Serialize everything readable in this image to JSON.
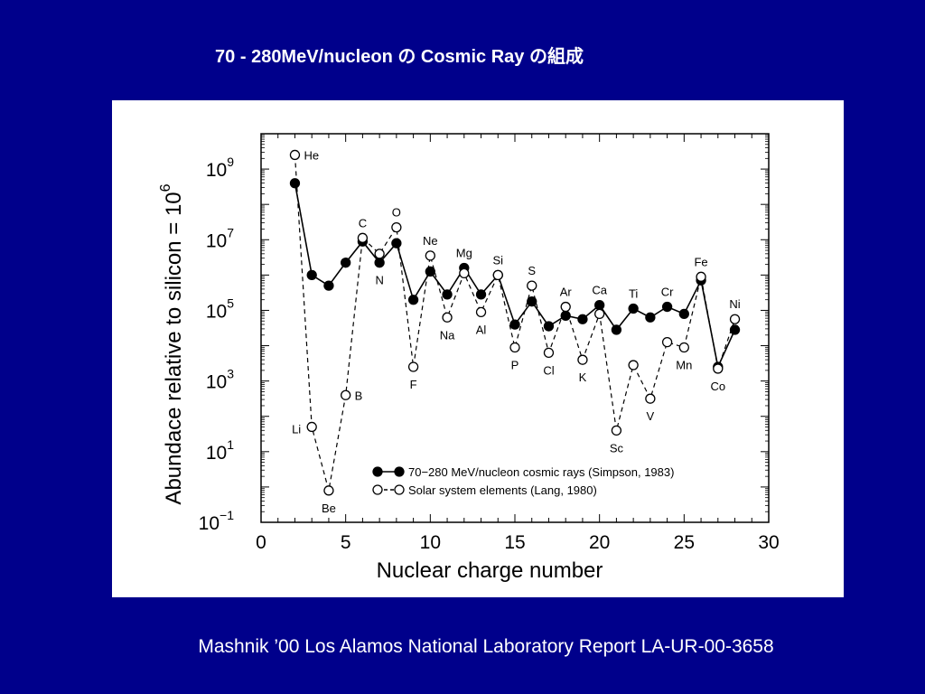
{
  "slide": {
    "title": "70 - 280MeV/nucleon の Cosmic Ray の組成",
    "caption": "Mashnik ’00 Los Alamos National Laboratory Report LA-UR-00-3658"
  },
  "colors": {
    "background": "#00008b",
    "panel": "#ffffff",
    "series_line": "#000000"
  },
  "chart_data": {
    "type": "line",
    "title": "",
    "xlabel": "Nuclear charge number",
    "ylabel_base": "Abundace relative to silicon = 10",
    "ylabel_exp": "6",
    "xlim": [
      0,
      30
    ],
    "ylim_log10": [
      -1,
      10
    ],
    "y_scale": "log",
    "grid": false,
    "legend_position": "bottom-right",
    "x_ticks": [
      0,
      5,
      10,
      15,
      20,
      25,
      30
    ],
    "y_tick_labels": [
      {
        "exp": 9,
        "base": "10",
        "sup": "9"
      },
      {
        "exp": 7,
        "base": "10",
        "sup": "7"
      },
      {
        "exp": 5,
        "base": "10",
        "sup": "5"
      },
      {
        "exp": 3,
        "base": "10",
        "sup": "3"
      },
      {
        "exp": 1,
        "base": "10",
        "sup": "1"
      },
      {
        "exp": -1,
        "base": "10",
        "sup": "−1"
      }
    ],
    "series": [
      {
        "name": "70−280 MeV/nucleon cosmic rays (Simpson, 1983)",
        "marker": "filled-circle",
        "line": "solid",
        "x": [
          2,
          3,
          4,
          5,
          6,
          7,
          8,
          9,
          10,
          11,
          12,
          13,
          14,
          15,
          16,
          17,
          18,
          19,
          20,
          21,
          22,
          23,
          24,
          25,
          26,
          27,
          28
        ],
        "log10_y": [
          8.6,
          6.0,
          5.7,
          6.35,
          6.95,
          6.35,
          6.9,
          5.3,
          6.1,
          5.45,
          6.2,
          5.45,
          6.0,
          4.6,
          5.25,
          4.55,
          4.85,
          4.75,
          5.15,
          4.45,
          5.05,
          4.8,
          5.1,
          4.9,
          5.85,
          3.4,
          4.45
        ]
      },
      {
        "name": "Solar system elements (Lang, 1980)",
        "marker": "open-circle",
        "line": "dashed",
        "x": [
          2,
          3,
          4,
          5,
          6,
          7,
          8,
          9,
          10,
          11,
          12,
          13,
          14,
          15,
          16,
          17,
          18,
          19,
          20,
          21,
          22,
          23,
          24,
          25,
          26,
          27,
          28
        ],
        "log10_y": [
          9.4,
          1.7,
          -0.1,
          2.6,
          7.05,
          6.6,
          7.35,
          3.4,
          6.55,
          4.8,
          6.05,
          4.95,
          6.0,
          3.95,
          5.7,
          3.8,
          5.1,
          3.6,
          4.9,
          1.6,
          3.45,
          2.5,
          4.1,
          3.95,
          5.95,
          3.35,
          4.75
        ]
      }
    ],
    "element_labels": [
      {
        "symbol": "He",
        "z": 2,
        "log10_y": 9.4,
        "side": "right"
      },
      {
        "symbol": "Li",
        "z": 3,
        "log10_y": 1.7,
        "side": "left"
      },
      {
        "symbol": "Be",
        "z": 4,
        "log10_y": -0.1,
        "side": "below"
      },
      {
        "symbol": "B",
        "z": 5,
        "log10_y": 2.6,
        "side": "right"
      },
      {
        "symbol": "C",
        "z": 6,
        "log10_y": 7.05,
        "side": "above"
      },
      {
        "symbol": "N",
        "z": 7,
        "log10_y": 6.35,
        "side": "below"
      },
      {
        "symbol": "O",
        "z": 8,
        "log10_y": 7.35,
        "side": "above"
      },
      {
        "symbol": "F",
        "z": 9,
        "log10_y": 3.4,
        "side": "below"
      },
      {
        "symbol": "Ne",
        "z": 10,
        "log10_y": 6.55,
        "side": "above"
      },
      {
        "symbol": "Na",
        "z": 11,
        "log10_y": 4.8,
        "side": "below"
      },
      {
        "symbol": "Mg",
        "z": 12,
        "log10_y": 6.2,
        "side": "above"
      },
      {
        "symbol": "Al",
        "z": 13,
        "log10_y": 4.95,
        "side": "below"
      },
      {
        "symbol": "Si",
        "z": 14,
        "log10_y": 6.0,
        "side": "above"
      },
      {
        "symbol": "P",
        "z": 15,
        "log10_y": 3.95,
        "side": "below"
      },
      {
        "symbol": "S",
        "z": 16,
        "log10_y": 5.7,
        "side": "above"
      },
      {
        "symbol": "Cl",
        "z": 17,
        "log10_y": 3.8,
        "side": "below"
      },
      {
        "symbol": "Ar",
        "z": 18,
        "log10_y": 5.1,
        "side": "above"
      },
      {
        "symbol": "K",
        "z": 19,
        "log10_y": 3.6,
        "side": "below"
      },
      {
        "symbol": "Ca",
        "z": 20,
        "log10_y": 5.15,
        "side": "above"
      },
      {
        "symbol": "Sc",
        "z": 21,
        "log10_y": 1.6,
        "side": "below"
      },
      {
        "symbol": "Ti",
        "z": 22,
        "log10_y": 5.05,
        "side": "above"
      },
      {
        "symbol": "V",
        "z": 23,
        "log10_y": 2.5,
        "side": "below"
      },
      {
        "symbol": "Cr",
        "z": 24,
        "log10_y": 5.1,
        "side": "above"
      },
      {
        "symbol": "Mn",
        "z": 25,
        "log10_y": 3.95,
        "side": "below"
      },
      {
        "symbol": "Fe",
        "z": 26,
        "log10_y": 5.95,
        "side": "above"
      },
      {
        "symbol": "Co",
        "z": 27,
        "log10_y": 3.35,
        "side": "below"
      },
      {
        "symbol": "Ni",
        "z": 28,
        "log10_y": 4.75,
        "side": "above"
      }
    ]
  }
}
